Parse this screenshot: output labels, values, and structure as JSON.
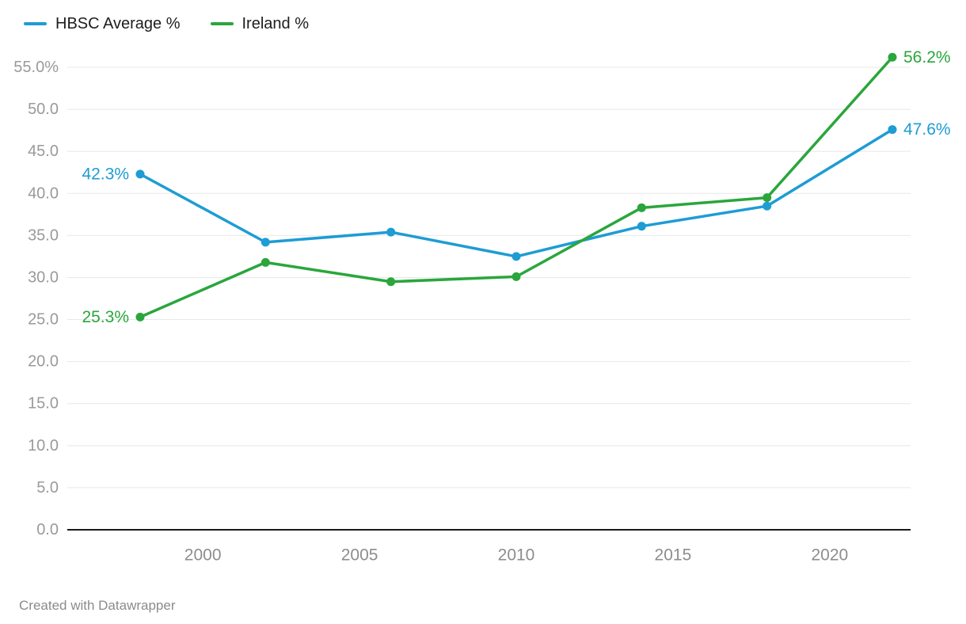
{
  "chart_data": {
    "type": "line",
    "title": "",
    "xlabel": "",
    "ylabel": "",
    "grid": true,
    "legend_position": "top-left",
    "x": [
      1998,
      2002,
      2006,
      2010,
      2014,
      2018,
      2022
    ],
    "series": [
      {
        "name": "HBSC Average %",
        "color": "#1e9cd4",
        "values": [
          42.3,
          34.2,
          35.4,
          32.5,
          36.1,
          38.5,
          47.6
        ],
        "start_label": "42.3%",
        "end_label": "47.6%"
      },
      {
        "name": "Ireland %",
        "color": "#2aa63c",
        "values": [
          25.3,
          31.8,
          29.5,
          30.1,
          38.3,
          39.5,
          56.2
        ],
        "start_label": "25.3%",
        "end_label": "56.2%"
      }
    ],
    "x_ticks": [
      {
        "value": 2000,
        "label": "2000"
      },
      {
        "value": 2005,
        "label": "2005"
      },
      {
        "value": 2010,
        "label": "2010"
      },
      {
        "value": 2015,
        "label": "2015"
      },
      {
        "value": 2020,
        "label": "2020"
      }
    ],
    "y_ticks": [
      {
        "value": 0,
        "label": "0.0"
      },
      {
        "value": 5,
        "label": "5.0"
      },
      {
        "value": 10,
        "label": "10.0"
      },
      {
        "value": 15,
        "label": "15.0"
      },
      {
        "value": 20,
        "label": "20.0"
      },
      {
        "value": 25,
        "label": "25.0"
      },
      {
        "value": 30,
        "label": "30.0"
      },
      {
        "value": 35,
        "label": "35.0"
      },
      {
        "value": 40,
        "label": "40.0"
      },
      {
        "value": 45,
        "label": "45.0"
      },
      {
        "value": 50,
        "label": "50.0"
      },
      {
        "value": 55,
        "label": "55.0%"
      }
    ],
    "xlim": [
      1996,
      2023
    ],
    "ylim": [
      0,
      56.5
    ]
  },
  "footer": {
    "attribution": "Created with Datawrapper"
  }
}
